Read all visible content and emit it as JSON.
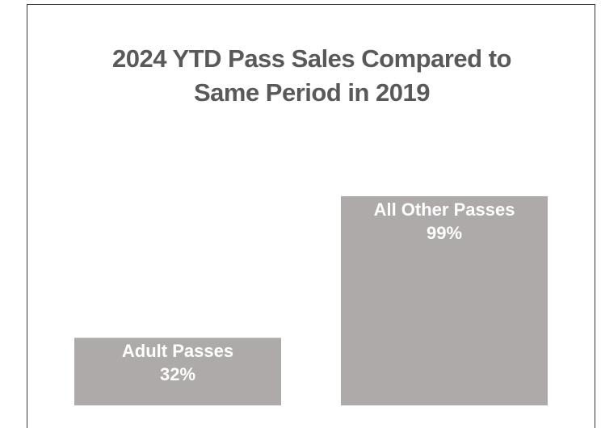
{
  "chart_data": {
    "type": "bar",
    "title": "2024 YTD Pass Sales Compared to Same Period in 2019",
    "categories": [
      "Adult Passes",
      "All Other Passes"
    ],
    "values": [
      32,
      99
    ],
    "value_labels": [
      "32%",
      "99%"
    ],
    "color": "#aeaaaa"
  }
}
